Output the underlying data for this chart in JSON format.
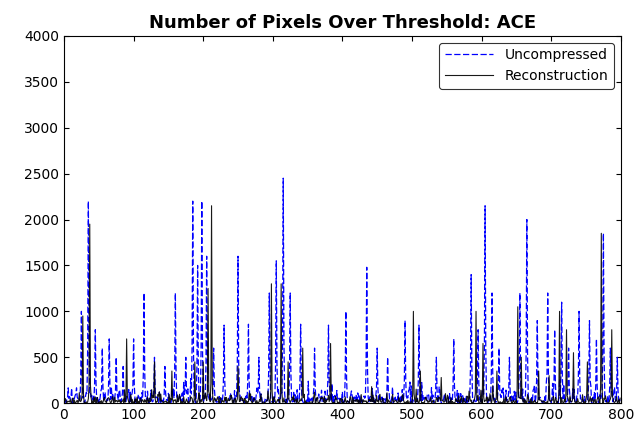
{
  "title": "Number of Pixels Over Threshold: ACE",
  "xlim": [
    0,
    800
  ],
  "ylim": [
    0,
    4000
  ],
  "xticks": [
    0,
    100,
    200,
    300,
    400,
    500,
    600,
    700,
    800
  ],
  "yticks": [
    0,
    500,
    1000,
    1500,
    2000,
    2500,
    3000,
    3500,
    4000
  ],
  "legend_labels": [
    "Uncompressed",
    "Reconstruction"
  ],
  "uncompressed_color": "#0000FF",
  "reconstruction_color": "#000000",
  "background_color": "#FFFFFF",
  "title_fontsize": 13,
  "legend_fontsize": 10,
  "tick_fontsize": 10,
  "n_points": 800,
  "seed": 12345,
  "base_noise_u": 50,
  "base_noise_r": 30,
  "spike_positions_uncomp": [
    25,
    35,
    45,
    55,
    65,
    75,
    85,
    100,
    115,
    130,
    145,
    160,
    175,
    185,
    192,
    198,
    205,
    215,
    230,
    250,
    265,
    280,
    295,
    305,
    315,
    325,
    340,
    360,
    380,
    405,
    435,
    450,
    465,
    490,
    510,
    535,
    560,
    585,
    595,
    605,
    615,
    625,
    640,
    655,
    665,
    680,
    695,
    705,
    715,
    725,
    740,
    755,
    765,
    775,
    785,
    795
  ],
  "spike_heights_uncomp": [
    1000,
    2200,
    800,
    600,
    700,
    500,
    400,
    700,
    1200,
    500,
    400,
    1200,
    500,
    2200,
    1500,
    2200,
    1600,
    600,
    850,
    1600,
    860,
    500,
    1200,
    1550,
    2450,
    1200,
    860,
    600,
    850,
    1000,
    1480,
    600,
    500,
    900,
    850,
    500,
    700,
    1400,
    800,
    2150,
    1200,
    600,
    500,
    1200,
    2000,
    900,
    1200,
    800,
    1100,
    600,
    1000,
    900,
    700,
    1850,
    600,
    500
  ],
  "spike_positions_recon": [
    27,
    37,
    90,
    130,
    155,
    188,
    200,
    207,
    212,
    250,
    298,
    312,
    322,
    343,
    383,
    442,
    502,
    512,
    542,
    592,
    602,
    622,
    652,
    657,
    682,
    697,
    712,
    722,
    732,
    752,
    772,
    787
  ],
  "spike_heights_recon": [
    950,
    1950,
    700,
    450,
    350,
    450,
    450,
    1250,
    2150,
    400,
    1300,
    1300,
    450,
    600,
    650,
    180,
    1000,
    350,
    280,
    1000,
    650,
    350,
    1050,
    500,
    350,
    300,
    1000,
    800,
    550,
    450,
    1850,
    800
  ]
}
